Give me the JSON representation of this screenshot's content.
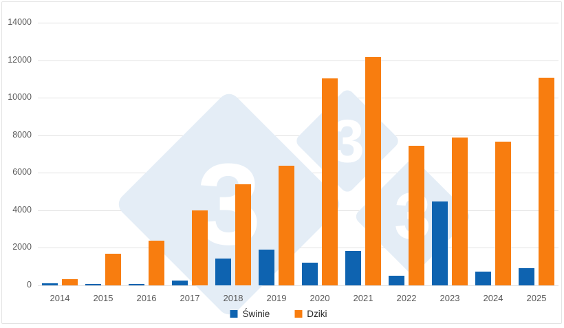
{
  "chart_data": {
    "type": "bar",
    "title": "",
    "categories": [
      "2014",
      "2015",
      "2016",
      "2017",
      "2018",
      "2019",
      "2020",
      "2021",
      "2022",
      "2023",
      "2024",
      "2025"
    ],
    "series": [
      {
        "name": "Świnie",
        "color": "#0e63b0",
        "values": [
          110,
          70,
          80,
          270,
          1420,
          1910,
          1200,
          1830,
          500,
          4480,
          720,
          900
        ]
      },
      {
        "name": "Dziki",
        "color": "#f87d0f",
        "values": [
          330,
          1680,
          2400,
          3980,
          5370,
          6390,
          11020,
          12150,
          7430,
          7890,
          7650,
          11050
        ]
      }
    ],
    "xlabel": "",
    "ylabel": "",
    "ylim": [
      0,
      14000
    ],
    "ytick_step": 2000,
    "y_tick_labels": [
      "0",
      "2000",
      "4000",
      "6000",
      "8000",
      "10000",
      "12000",
      "14000"
    ],
    "grid": "horizontal",
    "legend_position": "bottom"
  },
  "watermark": {
    "digits": [
      "3",
      "3",
      "3"
    ],
    "fill_color": "#e4edf6",
    "digit_color": "#ffffff"
  },
  "colors": {
    "background": "#ffffff",
    "gridline": "#e1e1e1",
    "tick_text": "#595959",
    "legend_text": "#262626",
    "frame_border": "#e3e3e3"
  }
}
